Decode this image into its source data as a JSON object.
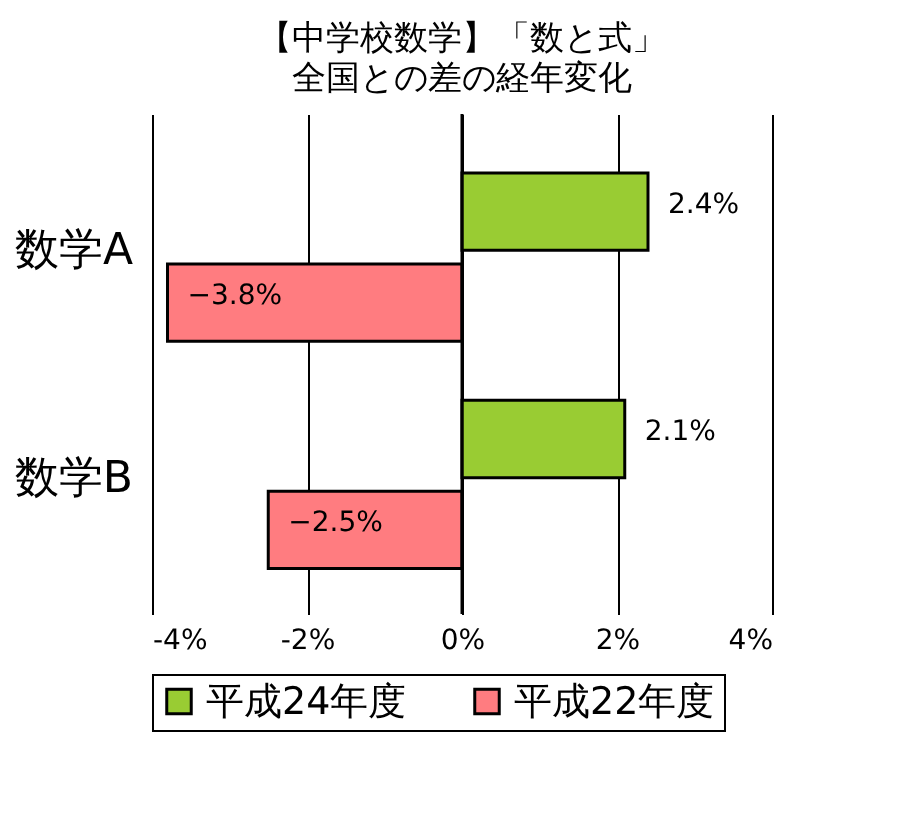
{
  "chart_data": {
    "type": "bar",
    "orientation": "horizontal",
    "title": "【中学校数学】「数と式」",
    "subtitle": "全国との差の経年変化",
    "categories": [
      "数学A",
      "数学B"
    ],
    "series": [
      {
        "name": "平成24年度",
        "color": "#99cc33",
        "values": [
          2.4,
          2.1
        ],
        "value_labels": [
          "2.4%",
          "2.1%"
        ]
      },
      {
        "name": "平成22年度",
        "color": "#ff7c80",
        "values": [
          -3.8,
          -2.5
        ],
        "value_labels": [
          "−3.8%",
          "−2.5%"
        ]
      }
    ],
    "xlim": [
      -4,
      4
    ],
    "xticks": [
      {
        "value": -4,
        "label": "-4%"
      },
      {
        "value": -2,
        "label": "-2%"
      },
      {
        "value": 0,
        "label": "0%"
      },
      {
        "value": 2,
        "label": "2%"
      },
      {
        "value": 4,
        "label": "4%"
      }
    ],
    "grid": "x",
    "legend": "bottom"
  }
}
